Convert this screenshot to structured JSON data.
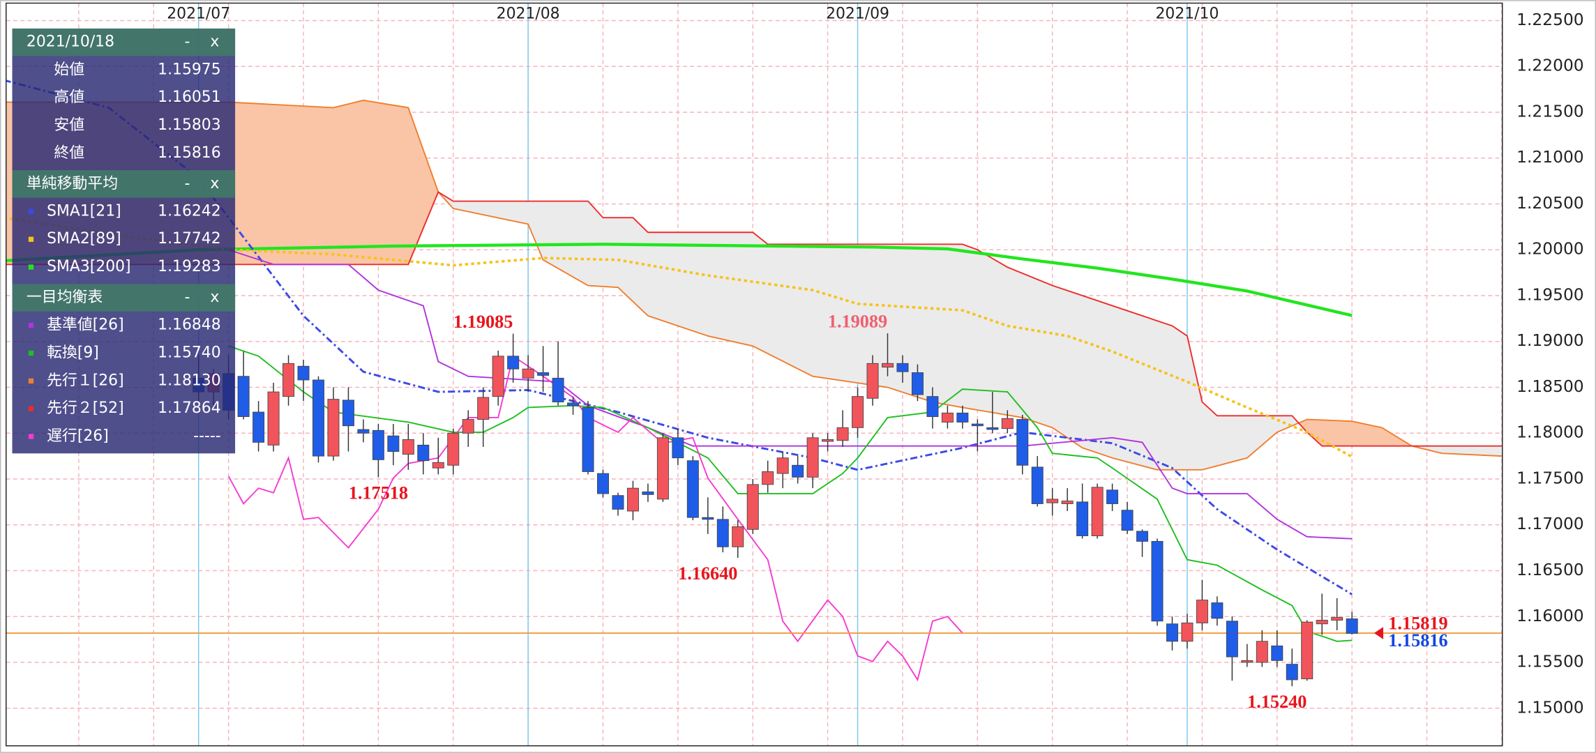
{
  "chart_data": {
    "type": "candlestick",
    "xlim": [
      -12.85,
      87.04
    ],
    "ylim": [
      1.1459,
      1.2269
    ],
    "xticks": [
      {
        "value": 0,
        "label": "2021/07"
      },
      {
        "value": 22,
        "label": "2021/08"
      },
      {
        "value": 44,
        "label": "2021/09"
      },
      {
        "value": 66,
        "label": "2021/10"
      }
    ],
    "xgrid": [
      -13,
      -8,
      -3,
      2,
      7,
      12,
      17,
      22,
      27,
      32,
      37,
      42,
      47,
      52,
      57,
      62,
      67,
      72,
      77,
      82,
      87
    ],
    "yticks": [
      {
        "value": 1.15,
        "label": "1.15000"
      },
      {
        "value": 1.155,
        "label": "1.15500"
      },
      {
        "value": 1.16,
        "label": "1.16000"
      },
      {
        "value": 1.165,
        "label": "1.16500"
      },
      {
        "value": 1.17,
        "label": "1.17000"
      },
      {
        "value": 1.175,
        "label": "1.17500"
      },
      {
        "value": 1.18,
        "label": "1.18000"
      },
      {
        "value": 1.185,
        "label": "1.18500"
      },
      {
        "value": 1.19,
        "label": "1.19000"
      },
      {
        "value": 1.195,
        "label": "1.19500"
      },
      {
        "value": 1.2,
        "label": "1.20000"
      },
      {
        "value": 1.205,
        "label": "1.20500"
      },
      {
        "value": 1.21,
        "label": "1.21000"
      },
      {
        "value": 1.215,
        "label": "1.21500"
      },
      {
        "value": 1.22,
        "label": "1.22000"
      },
      {
        "value": 1.225,
        "label": "1.22500"
      }
    ],
    "grid": true,
    "grid_color": "#f4b4bc",
    "month_line_color": "#7cc8ec",
    "candles": {
      "up_color": "#f2545b",
      "down_color": "#1f5de8",
      "x": [
        0,
        1,
        2,
        3,
        4,
        5,
        6,
        7,
        8,
        9,
        10,
        11,
        12,
        13,
        14,
        15,
        16,
        17,
        18,
        19,
        20,
        21,
        22,
        23,
        24,
        25,
        26,
        27,
        28,
        29,
        30,
        31,
        32,
        33,
        34,
        35,
        36,
        37,
        38,
        39,
        40,
        41,
        42,
        43,
        44,
        45,
        46,
        47,
        48,
        49,
        50,
        51,
        52,
        53,
        54,
        55,
        56,
        57,
        58,
        59,
        60,
        61,
        62,
        63,
        64,
        65,
        66,
        67,
        68,
        69,
        70,
        71,
        72,
        73,
        74,
        75,
        76,
        77
      ],
      "open": [
        1.186,
        1.1845,
        1.1865,
        1.1862,
        1.1823,
        1.1787,
        1.184,
        1.1873,
        1.1858,
        1.1775,
        1.1836,
        1.1804,
        1.1803,
        1.1797,
        1.1777,
        1.1787,
        1.1762,
        1.1765,
        1.18,
        1.1815,
        1.184,
        1.1884,
        1.186,
        1.1866,
        1.186,
        1.1833,
        1.1828,
        1.1756,
        1.1732,
        1.1715,
        1.1736,
        1.1728,
        1.1795,
        1.177,
        1.1708,
        1.1706,
        1.1676,
        1.1695,
        1.1744,
        1.1756,
        1.1765,
        1.1752,
        1.1791,
        1.1792,
        1.1806,
        1.1838,
        1.1872,
        1.1876,
        1.1866,
        1.184,
        1.1812,
        1.1822,
        1.181,
        1.1806,
        1.1805,
        1.1815,
        1.1763,
        1.1724,
        1.1723,
        1.1725,
        1.1688,
        1.1738,
        1.1716,
        1.1693,
        1.1682,
        1.1592,
        1.1573,
        1.1593,
        1.1615,
        1.1595,
        1.155,
        1.155,
        1.1568,
        1.1548,
        1.1532,
        1.1592,
        1.1596,
        1.15975
      ],
      "high": [
        1.1885,
        1.187,
        1.1885,
        1.1889,
        1.1835,
        1.1855,
        1.1885,
        1.188,
        1.1862,
        1.185,
        1.185,
        1.1815,
        1.181,
        1.181,
        1.181,
        1.18,
        1.1795,
        1.1805,
        1.1825,
        1.185,
        1.189,
        1.19085,
        1.1885,
        1.1895,
        1.19,
        1.184,
        1.1835,
        1.176,
        1.1735,
        1.1748,
        1.1745,
        1.18,
        1.1805,
        1.1775,
        1.173,
        1.172,
        1.1705,
        1.175,
        1.177,
        1.178,
        1.1775,
        1.18,
        1.18,
        1.1825,
        1.185,
        1.1885,
        1.19089,
        1.1885,
        1.1875,
        1.185,
        1.183,
        1.183,
        1.1815,
        1.1845,
        1.1825,
        1.182,
        1.1775,
        1.174,
        1.174,
        1.1745,
        1.1745,
        1.1745,
        1.1725,
        1.1695,
        1.1685,
        1.16,
        1.1603,
        1.164,
        1.1622,
        1.16,
        1.157,
        1.1585,
        1.1585,
        1.1565,
        1.1596,
        1.1625,
        1.162,
        1.16051
      ],
      "low": [
        1.1835,
        1.183,
        1.1815,
        1.1815,
        1.178,
        1.178,
        1.183,
        1.1835,
        1.1768,
        1.177,
        1.178,
        1.179,
        1.17518,
        1.1765,
        1.176,
        1.1755,
        1.1755,
        1.1755,
        1.1785,
        1.1785,
        1.183,
        1.1855,
        1.1845,
        1.1845,
        1.183,
        1.182,
        1.1755,
        1.173,
        1.171,
        1.1705,
        1.1725,
        1.1725,
        1.1765,
        1.1705,
        1.169,
        1.167,
        1.1664,
        1.169,
        1.1735,
        1.174,
        1.1745,
        1.174,
        1.178,
        1.1785,
        1.1795,
        1.183,
        1.1862,
        1.1855,
        1.1835,
        1.1805,
        1.1805,
        1.1805,
        1.178,
        1.18,
        1.18,
        1.1755,
        1.172,
        1.171,
        1.1715,
        1.1685,
        1.1685,
        1.1715,
        1.169,
        1.1665,
        1.159,
        1.1563,
        1.1565,
        1.1585,
        1.159,
        1.153,
        1.1545,
        1.1545,
        1.1545,
        1.1524,
        1.153,
        1.158,
        1.1585,
        1.15803
      ],
      "close": [
        1.1845,
        1.1865,
        1.1825,
        1.1818,
        1.179,
        1.1845,
        1.1876,
        1.1858,
        1.1775,
        1.1837,
        1.1808,
        1.18,
        1.1771,
        1.178,
        1.1793,
        1.177,
        1.1768,
        1.18,
        1.1815,
        1.1839,
        1.1884,
        1.187,
        1.187,
        1.1863,
        1.1834,
        1.183,
        1.1758,
        1.1734,
        1.1717,
        1.174,
        1.1733,
        1.1795,
        1.1773,
        1.1708,
        1.1706,
        1.1676,
        1.1698,
        1.1744,
        1.1758,
        1.1773,
        1.1752,
        1.1795,
        1.1793,
        1.1806,
        1.184,
        1.1876,
        1.1876,
        1.1867,
        1.1842,
        1.1818,
        1.1822,
        1.1812,
        1.1808,
        1.1804,
        1.1816,
        1.1765,
        1.1723,
        1.1728,
        1.1726,
        1.1688,
        1.1741,
        1.1723,
        1.1694,
        1.1682,
        1.1595,
        1.1573,
        1.1593,
        1.1618,
        1.1598,
        1.1556,
        1.1552,
        1.1573,
        1.1552,
        1.1531,
        1.1594,
        1.1596,
        1.1599,
        1.15816
      ]
    },
    "cloud": {
      "up_color": "#f9c5a6",
      "down_color": "#ebebeb"
    },
    "overlays": {
      "senkou_a": {
        "color": "#f07e2e",
        "style": "solid",
        "x": [
          -13,
          2,
          9,
          11,
          14,
          16,
          17,
          22,
          23,
          26,
          28,
          30,
          34,
          37,
          41,
          46,
          49,
          51,
          55,
          57,
          59,
          61,
          64,
          67,
          70,
          72,
          74,
          77,
          79,
          81,
          83,
          87
        ],
        "values": [
          1.2161,
          1.2161,
          1.2155,
          1.2163,
          1.2155,
          1.2063,
          1.2045,
          1.2028,
          1.1989,
          1.1961,
          1.1959,
          1.1928,
          1.1906,
          1.1895,
          1.1862,
          1.185,
          1.1834,
          1.1828,
          1.1817,
          1.1806,
          1.1784,
          1.1773,
          1.176,
          1.176,
          1.1773,
          1.1801,
          1.1815,
          1.1813,
          1.1806,
          1.1786,
          1.1778,
          1.1775
        ]
      },
      "senkou_b": {
        "color": "#ee2b2b",
        "style": "solid",
        "x": [
          -13,
          14,
          16,
          17,
          26,
          27,
          29,
          30,
          37,
          38,
          51,
          52,
          54,
          57,
          61,
          65,
          66,
          67,
          68,
          73,
          74,
          75,
          87
        ],
        "values": [
          1.1984,
          1.1984,
          1.2063,
          1.2053,
          1.2053,
          1.2035,
          1.2035,
          1.2019,
          1.2019,
          1.2006,
          1.2006,
          1.2,
          1.1981,
          1.1961,
          1.1939,
          1.1917,
          1.1906,
          1.1834,
          1.1819,
          1.1819,
          1.1801,
          1.1786,
          1.1786
        ]
      },
      "sma3": {
        "color": "#22e51e",
        "style": "thick",
        "x": [
          -13,
          0,
          13,
          27,
          45,
          50,
          55,
          60,
          65,
          70,
          77
        ],
        "values": [
          1.1988,
          1.2,
          1.2004,
          1.2006,
          1.2003,
          1.2001,
          1.199,
          1.198,
          1.1968,
          1.1955,
          1.19283
        ]
      },
      "sma2": {
        "color": "#f7c21b",
        "style": "dotted",
        "x": [
          -13,
          -5,
          2,
          9,
          17,
          23,
          28,
          34,
          41,
          44,
          51,
          54,
          58,
          61,
          66,
          70,
          74,
          77
        ],
        "values": [
          1.2035,
          1.2015,
          1.2,
          1.1995,
          1.1983,
          1.1991,
          1.1989,
          1.1972,
          1.1956,
          1.1941,
          1.1934,
          1.1917,
          1.1906,
          1.1889,
          1.1856,
          1.1828,
          1.1801,
          1.17742
        ]
      },
      "sma1": {
        "color": "#3b4ae6",
        "style": "dashdot",
        "x": [
          -13,
          -6,
          0,
          7,
          11,
          16,
          22,
          28,
          34,
          41,
          44,
          51,
          55,
          61,
          65,
          68,
          72,
          77
        ],
        "values": [
          1.2185,
          1.2155,
          1.2078,
          1.1928,
          1.1867,
          1.1845,
          1.1847,
          1.1823,
          1.1795,
          1.1773,
          1.176,
          1.1784,
          1.1801,
          1.1789,
          1.1762,
          1.1717,
          1.1673,
          1.16242
        ]
      },
      "kijun": {
        "color": "#b033e0",
        "style": "solid",
        "x": [
          2,
          5,
          10,
          12,
          15,
          16,
          18,
          24,
          26,
          30,
          33,
          55,
          61,
          63,
          65,
          66,
          70,
          72,
          74,
          77
        ],
        "values": [
          1.2,
          1.1984,
          1.1984,
          1.1956,
          1.1939,
          1.1878,
          1.1862,
          1.1856,
          1.183,
          1.1806,
          1.1786,
          1.1786,
          1.1795,
          1.179,
          1.174,
          1.1734,
          1.1734,
          1.1706,
          1.1687,
          1.16848
        ]
      },
      "tenkan": {
        "color": "#1fbf1f",
        "style": "solid",
        "x": [
          2,
          4,
          7,
          9,
          14,
          17,
          19,
          21,
          22,
          25,
          27,
          30,
          34,
          36,
          41,
          43,
          44,
          46,
          49,
          51,
          54,
          56,
          57,
          60,
          61,
          64,
          66,
          68,
          71,
          73,
          74,
          76,
          77
        ],
        "values": [
          1.1895,
          1.1884,
          1.1845,
          1.1823,
          1.1812,
          1.1801,
          1.1801,
          1.1817,
          1.1828,
          1.183,
          1.1828,
          1.1806,
          1.1773,
          1.1734,
          1.1734,
          1.1756,
          1.1773,
          1.1817,
          1.1823,
          1.1848,
          1.1845,
          1.1806,
          1.1778,
          1.1773,
          1.1762,
          1.1728,
          1.1662,
          1.1656,
          1.1629,
          1.1612,
          1.1584,
          1.1573,
          1.1574
        ]
      },
      "chikou": {
        "color": "#f53bd0",
        "style": "solid",
        "x": [
          2,
          3,
          4,
          5,
          6,
          7,
          8,
          10,
          12,
          13,
          14,
          16,
          18,
          20,
          21,
          23,
          25,
          26,
          28,
          29,
          31,
          33,
          34,
          36,
          37,
          38,
          39,
          40,
          42,
          43,
          44,
          45,
          46,
          47,
          48,
          49,
          50,
          51
        ],
        "values": [
          1.1753,
          1.1723,
          1.174,
          1.1735,
          1.1773,
          1.1706,
          1.1708,
          1.1675,
          1.1717,
          1.1751,
          1.1767,
          1.1773,
          1.1817,
          1.1817,
          1.1884,
          1.1862,
          1.1839,
          1.1817,
          1.1801,
          1.1817,
          1.1789,
          1.1795,
          1.1751,
          1.1706,
          1.1684,
          1.1662,
          1.1595,
          1.1573,
          1.1618,
          1.16,
          1.1557,
          1.1551,
          1.1573,
          1.1557,
          1.1531,
          1.1595,
          1.16,
          1.1582
        ]
      }
    },
    "current_prices": [
      {
        "value": 1.15819,
        "color": "#e8141c"
      },
      {
        "value": 1.15816,
        "color": "#1446e0"
      }
    ],
    "price_line_color": "#f39a3c",
    "annotations": [
      {
        "x": 19,
        "value": 1.19085,
        "position": "above",
        "color": "#e8141c"
      },
      {
        "x": 12,
        "value": 1.17518,
        "position": "below",
        "color": "#e8141c"
      },
      {
        "x": 34,
        "value": 1.1664,
        "label": "1.16640",
        "position": "below",
        "color": "#e8141c"
      },
      {
        "x": 44,
        "value": 1.19089,
        "position": "above",
        "color": "#f06070"
      },
      {
        "x": 72,
        "value": 1.1524,
        "label": "1.15240",
        "position": "below",
        "color": "#e8141c"
      }
    ]
  },
  "info_panel": {
    "buttons": [
      "-",
      "x"
    ],
    "sections": [
      {
        "title": "2021/10/18",
        "rows": [
          {
            "label": "始値",
            "value": "1.15975"
          },
          {
            "label": "高値",
            "value": "1.16051"
          },
          {
            "label": "安値",
            "value": "1.15803"
          },
          {
            "label": "終値",
            "value": "1.15816"
          }
        ]
      },
      {
        "title": "単純移動平均",
        "rows": [
          {
            "label": "SMA1[21]",
            "value": "1.16242",
            "color": "#3b4ae6"
          },
          {
            "label": "SMA2[89]",
            "value": "1.17742",
            "color": "#f7c21b"
          },
          {
            "label": "SMA3[200]",
            "value": "1.19283",
            "color": "#22e51e"
          }
        ]
      },
      {
        "title": "一目均衡表",
        "rows": [
          {
            "label": "基準値[26]",
            "value": "1.16848",
            "color": "#b033e0"
          },
          {
            "label": "転換[9]",
            "value": "1.15740",
            "color": "#1fbf1f"
          },
          {
            "label": "先行１[26]",
            "value": "1.18130",
            "color": "#f07e2e"
          },
          {
            "label": "先行２[52]",
            "value": "1.17864",
            "color": "#ee2b2b"
          },
          {
            "label": "遅行[26]",
            "value": "-----",
            "color": "#f53bd0"
          }
        ]
      }
    ]
  }
}
